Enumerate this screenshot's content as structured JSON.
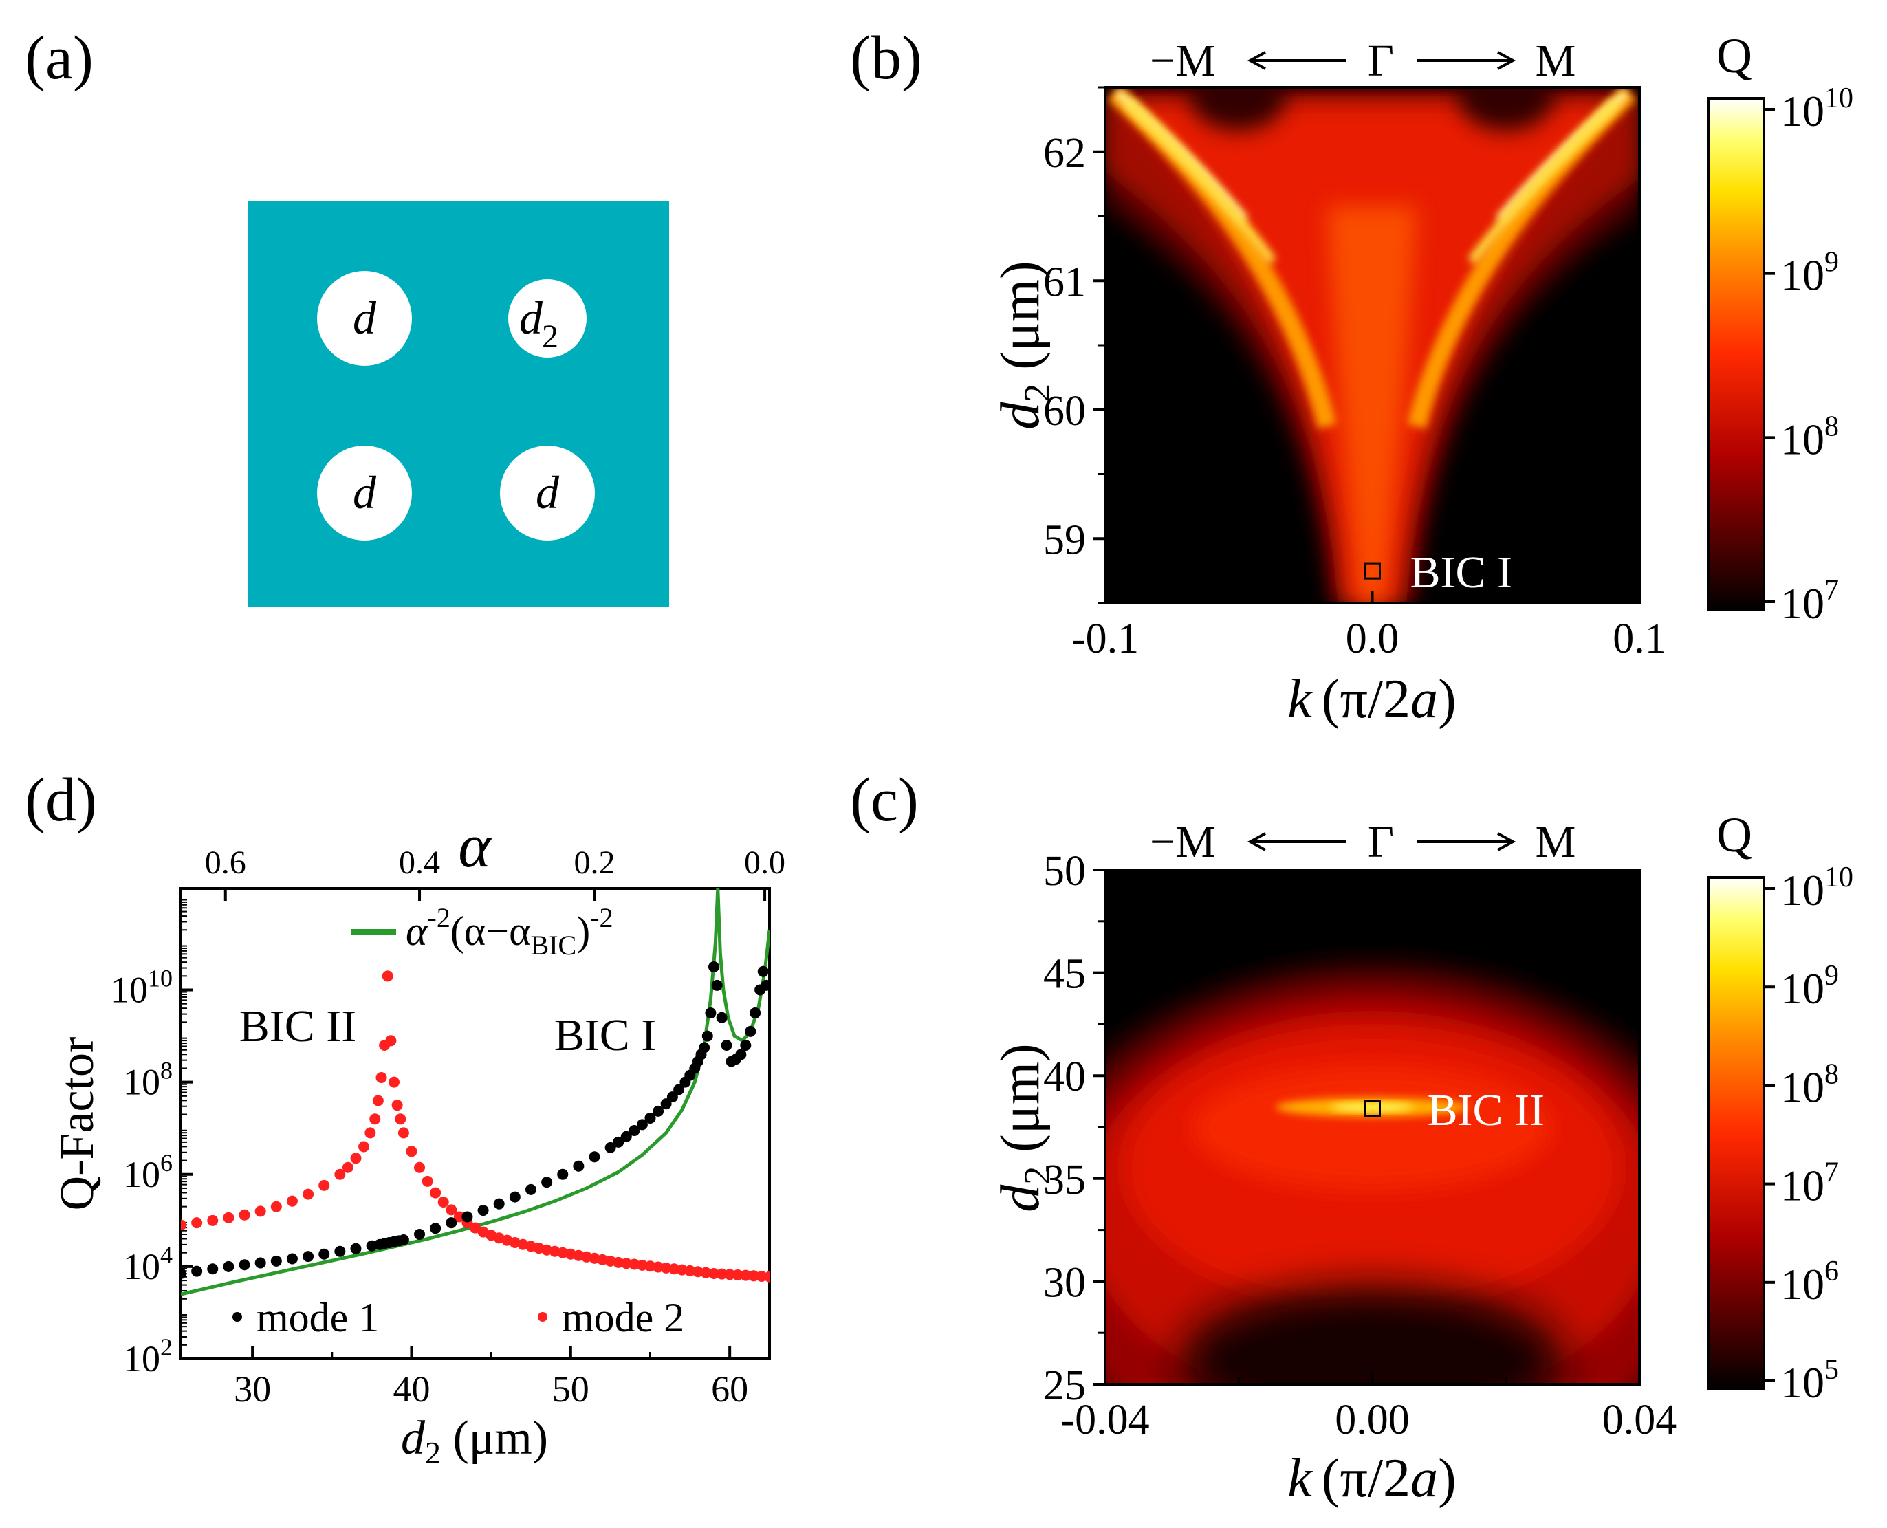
{
  "figure": {
    "panels": {
      "a": {
        "label": "(a)",
        "holes": [
          "d",
          "d",
          "d",
          "d"
        ],
        "hole_sub": "2",
        "fill": "#00aebb"
      },
      "b": {
        "label": "(b)",
        "arrow_left": "−M",
        "arrow_center": "Γ",
        "arrow_right": "M",
        "colorbar_title": "Q",
        "marker_label": "BIC I",
        "xlabel_main": "k",
        "xlabel_unit": "(π/2",
        "xlabel_a": "a",
        "xlabel_close": ")",
        "ylabel_main": "d",
        "ylabel_sub": "2",
        "ylabel_unit": " (μm)"
      },
      "c": {
        "label": "(c)",
        "arrow_left": "−M",
        "arrow_center": "Γ",
        "arrow_right": "M",
        "colorbar_title": "Q",
        "marker_label": "BIC II",
        "xlabel_main": "k",
        "xlabel_unit": "(π/2",
        "xlabel_a": "a",
        "xlabel_close": ")",
        "ylabel_main": "d",
        "ylabel_sub": "2",
        "ylabel_unit": " (μm)"
      },
      "d": {
        "label": "(d)",
        "top_axis_label": "α",
        "ylabel": "Q-Factor",
        "xlabel_main": "d",
        "xlabel_sub": "2",
        "xlabel_unit": " (μm)",
        "annotation_bic2": "BIC II",
        "annotation_bic1": "BIC I",
        "fit_label": {
          "a": "α",
          "p1": "-2",
          "open": "(α−α",
          "sub": "BIC",
          "close": ")",
          "p2": "-2"
        },
        "legend_mode1": "mode 1",
        "legend_mode2": "mode 2"
      }
    }
  },
  "chart_data": [
    {
      "id": "b",
      "type": "heatmap",
      "title": "",
      "xlabel": "k (π/2a)",
      "ylabel": "d2 (μm)",
      "xlim": [
        -0.1,
        0.1
      ],
      "ylim": [
        58.5,
        62.5
      ],
      "xticks": [
        -0.1,
        0.0,
        0.1
      ],
      "xtick_labels": [
        "-0.1",
        "0.0",
        "0.1"
      ],
      "yticks": [
        59,
        60,
        61,
        62
      ],
      "ytick_labels": [
        "59",
        "60",
        "61",
        "62"
      ],
      "colorbar": {
        "scale": "log",
        "range": [
          10000000.0,
          10000000000.0
        ],
        "ticks": [
          {
            "base": "10",
            "exp": "7"
          },
          {
            "base": "10",
            "exp": "8"
          },
          {
            "base": "10",
            "exp": "9"
          },
          {
            "base": "10",
            "exp": "10"
          }
        ]
      },
      "markers": [
        {
          "x": 0.0,
          "y": 58.75,
          "label": "BIC I"
        }
      ],
      "colors": {
        "low": "#000000",
        "mid": "#ff1a00",
        "high": "#ffff66",
        "top": "#ffffff"
      }
    },
    {
      "id": "c",
      "type": "heatmap",
      "title": "",
      "xlabel": "k (π/2a)",
      "ylabel": "d2 (μm)",
      "xlim": [
        -0.04,
        0.04
      ],
      "ylim": [
        25,
        50
      ],
      "xticks": [
        -0.04,
        0.0,
        0.04
      ],
      "xtick_labels": [
        "-0.04",
        "0.00",
        "0.04"
      ],
      "yticks": [
        25,
        30,
        35,
        40,
        45,
        50
      ],
      "ytick_labels": [
        "25",
        "30",
        "35",
        "40",
        "45",
        "50"
      ],
      "colorbar": {
        "scale": "log",
        "range": [
          100000.0,
          10000000000.0
        ],
        "ticks": [
          {
            "base": "10",
            "exp": "5"
          },
          {
            "base": "10",
            "exp": "6"
          },
          {
            "base": "10",
            "exp": "7"
          },
          {
            "base": "10",
            "exp": "8"
          },
          {
            "base": "10",
            "exp": "9"
          },
          {
            "base": "10",
            "exp": "10"
          }
        ]
      },
      "markers": [
        {
          "x": 0.0,
          "y": 38.4,
          "label": "BIC II"
        }
      ]
    },
    {
      "id": "d",
      "type": "scatter",
      "xlabel": "d2 (μm)",
      "ylabel": "Q-Factor",
      "top_xlabel": "α",
      "xlim": [
        25.5,
        62.5
      ],
      "ylim_log10": [
        2,
        12.2
      ],
      "xticks": [
        30,
        40,
        50,
        60
      ],
      "xtick_labels": [
        "30",
        "40",
        "50",
        "60"
      ],
      "top_ticks": [
        {
          "d2": 28.3,
          "label": "0.6"
        },
        {
          "d2": 40.5,
          "label": "0.4"
        },
        {
          "d2": 51.5,
          "label": "0.2"
        },
        {
          "d2": 62.2,
          "label": "0.0"
        }
      ],
      "yticks": [
        {
          "log": 2,
          "base": "10",
          "exp": "2"
        },
        {
          "log": 4,
          "base": "10",
          "exp": "4"
        },
        {
          "log": 6,
          "base": "10",
          "exp": "6"
        },
        {
          "log": 8,
          "base": "10",
          "exp": "8"
        },
        {
          "log": 10,
          "base": "10",
          "exp": "10"
        }
      ],
      "series": [
        {
          "name": "mode 1",
          "color": "#000000",
          "marker": "circle",
          "x": [
            25.5,
            26.5,
            27.5,
            28.5,
            29.5,
            30.5,
            31.5,
            32.5,
            33.5,
            34.5,
            35.5,
            36.5,
            37.5,
            38.0,
            38.3,
            38.6,
            38.9,
            39.2,
            39.5,
            40.5,
            41.5,
            42.5,
            43.5,
            44.5,
            45.5,
            46.5,
            47.5,
            48.5,
            49.5,
            50.5,
            51.5,
            52.5,
            53.0,
            53.5,
            54.0,
            54.5,
            55.0,
            55.5,
            56.0,
            56.4,
            56.8,
            57.2,
            57.5,
            57.8,
            58.0,
            58.2,
            58.4,
            58.6,
            58.8,
            59.0,
            59.2,
            59.5,
            59.8,
            60.1,
            60.4,
            60.7,
            61.0,
            61.3,
            61.6,
            61.9,
            62.1,
            62.3
          ],
          "log10_values": [
            3.85,
            3.9,
            3.95,
            4.0,
            4.04,
            4.08,
            4.12,
            4.17,
            4.22,
            4.27,
            4.33,
            4.39,
            4.45,
            4.48,
            4.5,
            4.52,
            4.54,
            4.56,
            4.58,
            4.7,
            4.83,
            4.95,
            5.08,
            5.22,
            5.36,
            5.51,
            5.67,
            5.83,
            6.0,
            6.18,
            6.38,
            6.58,
            6.7,
            6.82,
            6.95,
            7.08,
            7.22,
            7.37,
            7.53,
            7.68,
            7.84,
            8.0,
            8.15,
            8.3,
            8.45,
            8.6,
            8.75,
            9.0,
            9.5,
            10.5,
            10.1,
            9.4,
            8.8,
            8.45,
            8.5,
            8.6,
            8.8,
            9.1,
            9.5,
            10.0,
            10.4,
            10.1
          ]
        },
        {
          "name": "mode 2",
          "color": "#ff2020",
          "marker": "circle",
          "x": [
            25.5,
            26.5,
            27.5,
            28.5,
            29.5,
            30.5,
            31.5,
            32.5,
            33.5,
            34.5,
            35.5,
            36.0,
            36.5,
            37.0,
            37.4,
            37.7,
            37.9,
            38.1,
            38.3,
            38.5,
            38.7,
            38.9,
            39.1,
            39.3,
            39.5,
            40.0,
            40.5,
            41.0,
            41.5,
            42.0,
            42.5,
            43.0,
            43.5,
            44.0,
            44.5,
            45.0,
            45.5,
            46.0,
            46.5,
            47.0,
            47.5,
            48.0,
            48.5,
            49.0,
            49.5,
            50.0,
            50.5,
            51.0,
            51.5,
            52.0,
            52.5,
            53.0,
            53.5,
            54.0,
            54.5,
            55.0,
            55.5,
            56.0,
            56.5,
            57.0,
            57.5,
            58.0,
            58.5,
            59.0,
            59.5,
            60.0,
            60.5,
            61.0,
            61.5,
            62.0,
            62.5
          ],
          "log10_values": [
            4.9,
            4.95,
            5.0,
            5.06,
            5.12,
            5.2,
            5.3,
            5.42,
            5.57,
            5.76,
            6.0,
            6.15,
            6.35,
            6.6,
            6.9,
            7.2,
            7.6,
            8.1,
            8.8,
            10.3,
            8.9,
            8.0,
            7.5,
            7.2,
            6.9,
            6.5,
            6.15,
            5.85,
            5.6,
            5.4,
            5.23,
            5.08,
            4.95,
            4.84,
            4.75,
            4.68,
            4.62,
            4.57,
            4.52,
            4.48,
            4.44,
            4.4,
            4.36,
            4.33,
            4.3,
            4.27,
            4.24,
            4.21,
            4.18,
            4.15,
            4.12,
            4.09,
            4.07,
            4.05,
            4.03,
            4.01,
            3.99,
            3.97,
            3.95,
            3.93,
            3.91,
            3.89,
            3.87,
            3.85,
            3.84,
            3.83,
            3.82,
            3.81,
            3.8,
            3.79,
            3.78
          ]
        },
        {
          "name": "fit",
          "color": "#2a9a2a",
          "type": "line",
          "x": [
            25.5,
            27,
            29,
            31,
            33,
            35,
            37,
            39,
            41,
            43,
            45,
            47,
            49,
            51,
            53,
            54.5,
            56,
            57,
            57.8,
            58.4,
            58.8,
            59.1,
            59.25,
            59.4,
            59.6,
            59.9,
            60.3,
            60.8,
            61.3,
            61.8,
            62.2,
            62.5
          ],
          "log10_values": [
            3.4,
            3.52,
            3.68,
            3.83,
            3.98,
            4.13,
            4.28,
            4.44,
            4.6,
            4.78,
            4.97,
            5.18,
            5.42,
            5.7,
            6.05,
            6.42,
            6.9,
            7.4,
            8.0,
            8.8,
            9.8,
            11.0,
            12.2,
            10.8,
            10.0,
            9.4,
            9.0,
            8.9,
            9.1,
            9.6,
            10.4,
            11.3
          ]
        }
      ]
    }
  ]
}
